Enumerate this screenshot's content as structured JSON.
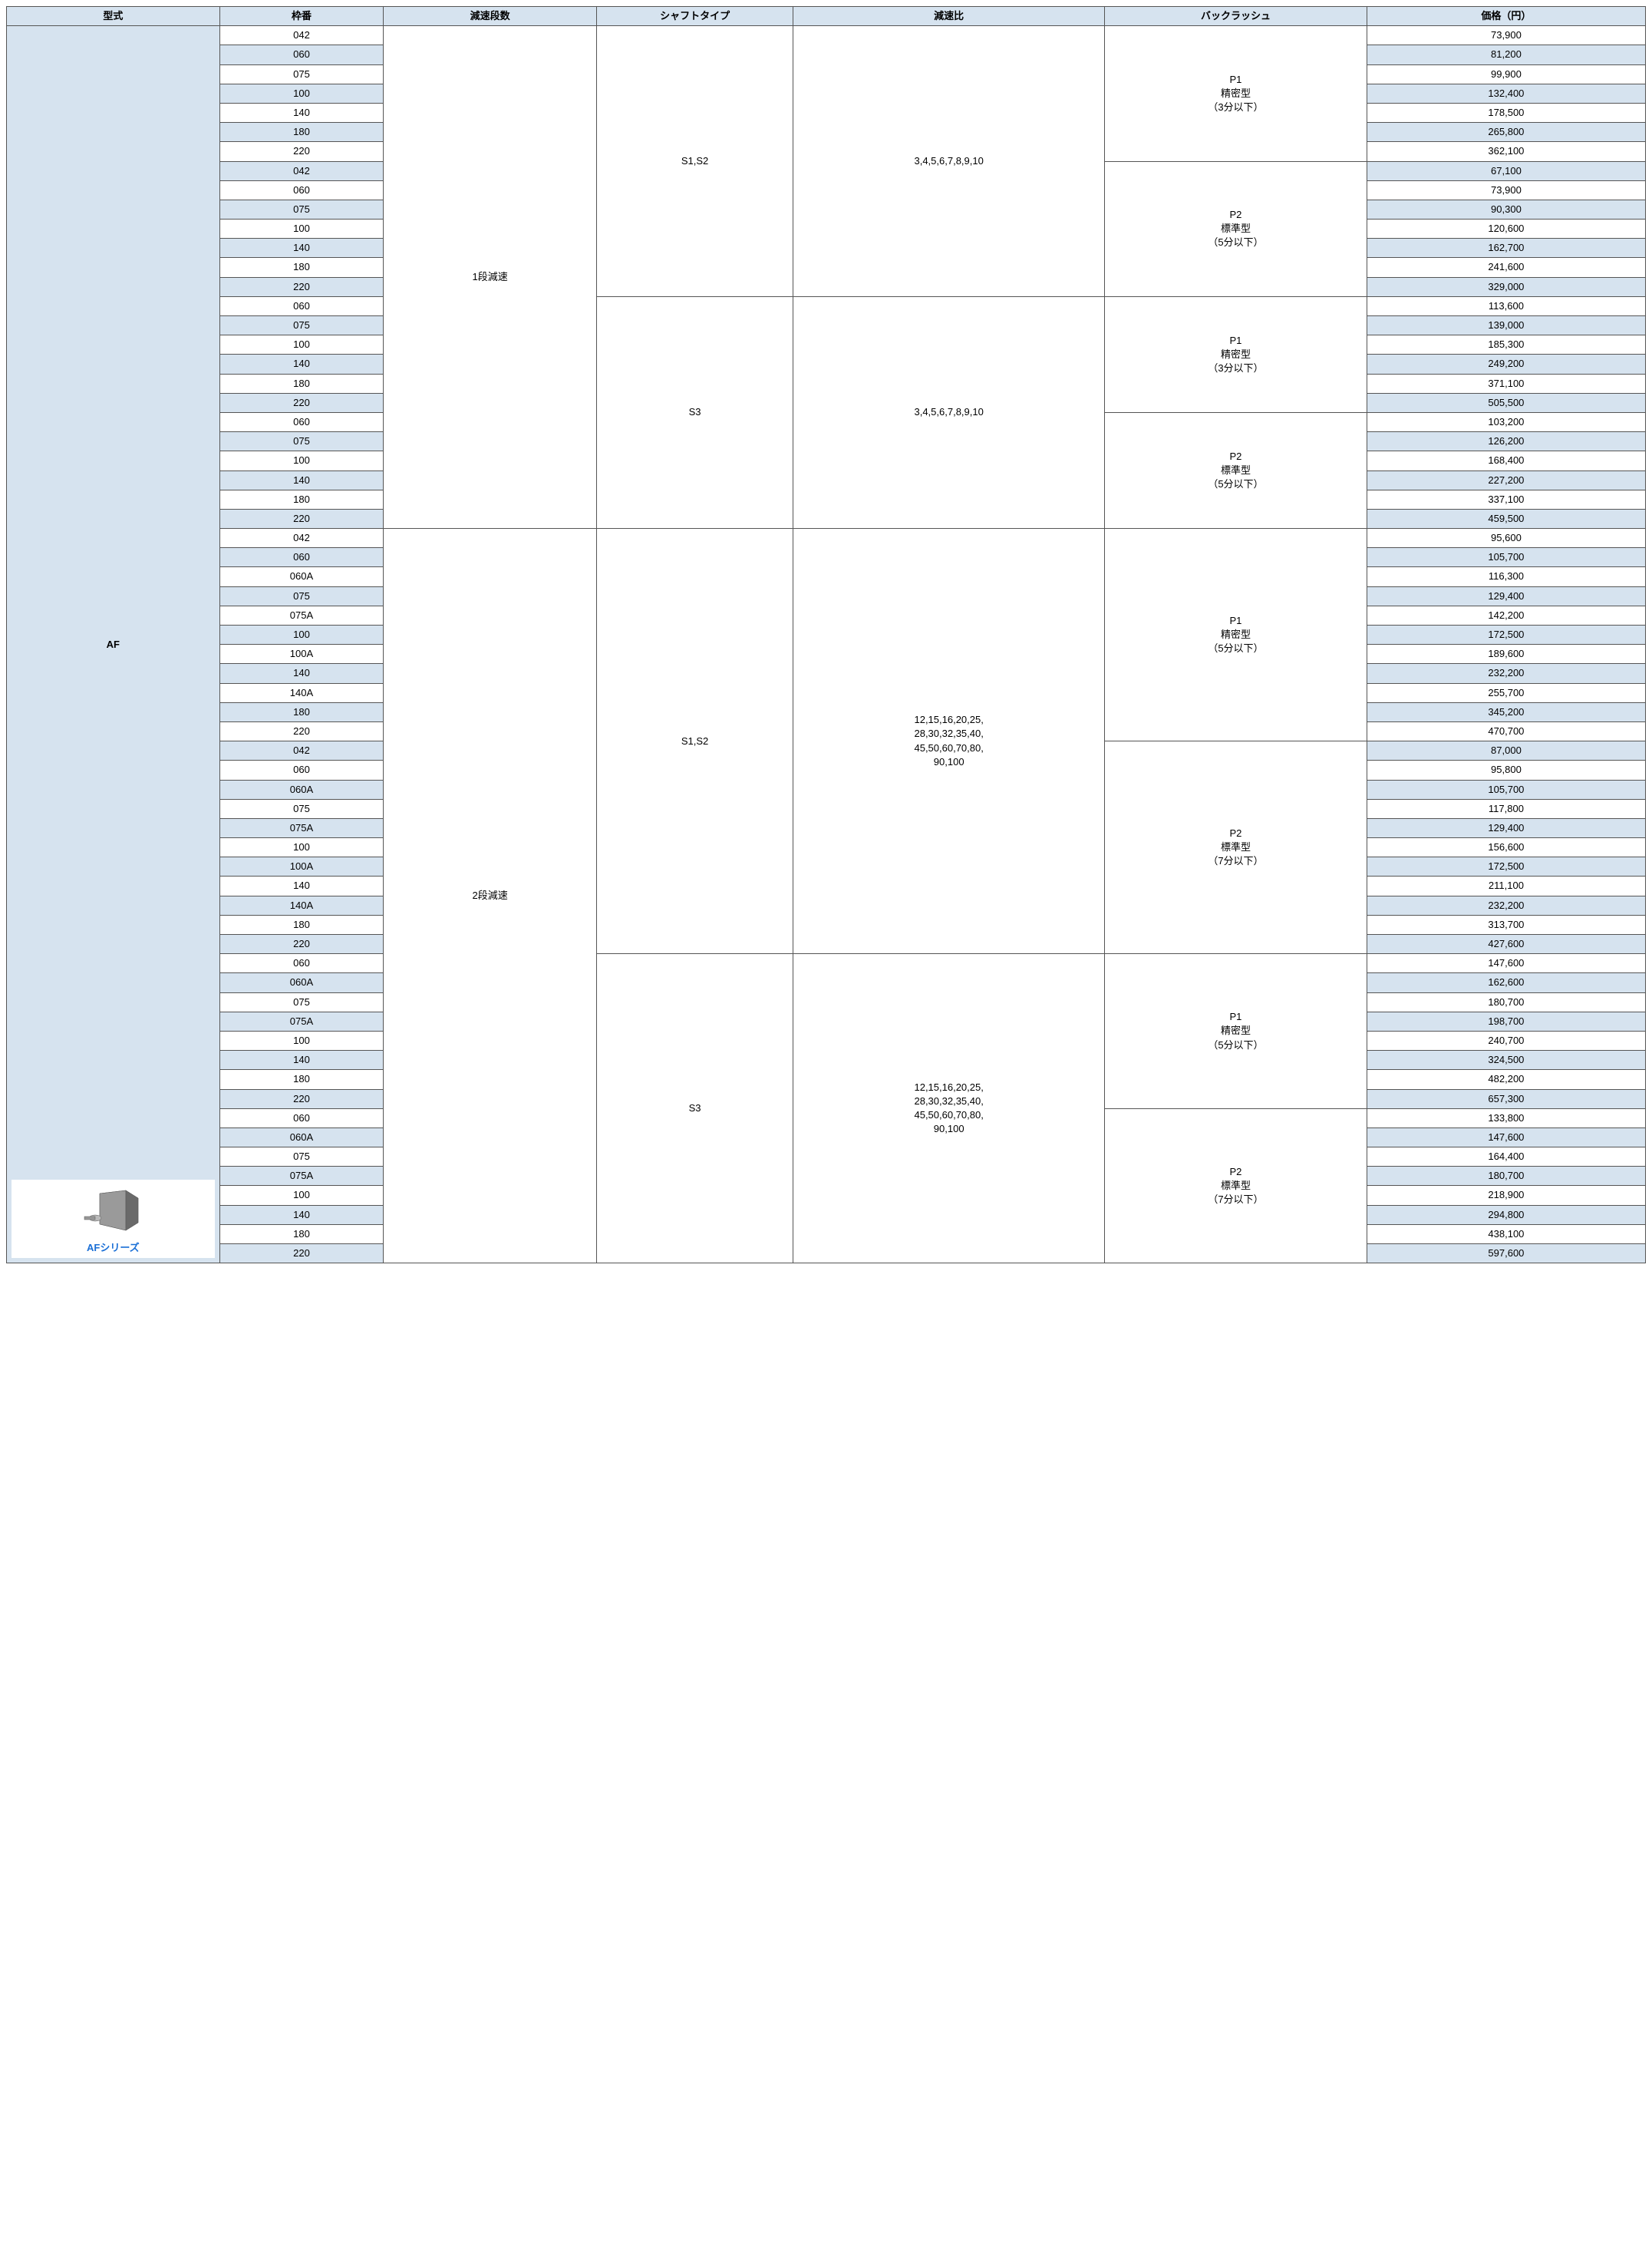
{
  "columns": [
    "型式",
    "枠番",
    "減速段数",
    "シャフトタイプ",
    "減速比",
    "バックラッシュ",
    "価格（円）"
  ],
  "model": "AF",
  "product_label": "AFシリーズ",
  "sections": [
    {
      "stage": "1段減速",
      "shafts": [
        {
          "shaft": "S1,S2",
          "ratio": "3,4,5,6,7,8,9,10",
          "backlashes": [
            {
              "label": "P1\n精密型\n（3分以下）",
              "rows": [
                {
                  "frame": "042",
                  "price": "73,900"
                },
                {
                  "frame": "060",
                  "price": "81,200"
                },
                {
                  "frame": "075",
                  "price": "99,900"
                },
                {
                  "frame": "100",
                  "price": "132,400"
                },
                {
                  "frame": "140",
                  "price": "178,500"
                },
                {
                  "frame": "180",
                  "price": "265,800"
                },
                {
                  "frame": "220",
                  "price": "362,100"
                }
              ]
            },
            {
              "label": "P2\n標準型\n（5分以下）",
              "rows": [
                {
                  "frame": "042",
                  "price": "67,100"
                },
                {
                  "frame": "060",
                  "price": "73,900"
                },
                {
                  "frame": "075",
                  "price": "90,300"
                },
                {
                  "frame": "100",
                  "price": "120,600"
                },
                {
                  "frame": "140",
                  "price": "162,700"
                },
                {
                  "frame": "180",
                  "price": "241,600"
                },
                {
                  "frame": "220",
                  "price": "329,000"
                }
              ]
            }
          ]
        },
        {
          "shaft": "S3",
          "ratio": "3,4,5,6,7,8,9,10",
          "backlashes": [
            {
              "label": "P1\n精密型\n（3分以下）",
              "rows": [
                {
                  "frame": "060",
                  "price": "113,600"
                },
                {
                  "frame": "075",
                  "price": "139,000"
                },
                {
                  "frame": "100",
                  "price": "185,300"
                },
                {
                  "frame": "140",
                  "price": "249,200"
                },
                {
                  "frame": "180",
                  "price": "371,100"
                },
                {
                  "frame": "220",
                  "price": "505,500"
                }
              ]
            },
            {
              "label": "P2\n標準型\n（5分以下）",
              "rows": [
                {
                  "frame": "060",
                  "price": "103,200"
                },
                {
                  "frame": "075",
                  "price": "126,200"
                },
                {
                  "frame": "100",
                  "price": "168,400"
                },
                {
                  "frame": "140",
                  "price": "227,200"
                },
                {
                  "frame": "180",
                  "price": "337,100"
                },
                {
                  "frame": "220",
                  "price": "459,500"
                }
              ]
            }
          ]
        }
      ]
    },
    {
      "stage": "2段減速",
      "shafts": [
        {
          "shaft": "S1,S2",
          "ratio": "12,15,16,20,25,\n28,30,32,35,40,\n45,50,60,70,80,\n90,100",
          "backlashes": [
            {
              "label": "P1\n精密型\n（5分以下）",
              "rows": [
                {
                  "frame": "042",
                  "price": "95,600"
                },
                {
                  "frame": "060",
                  "price": "105,700"
                },
                {
                  "frame": "060A",
                  "price": "116,300"
                },
                {
                  "frame": "075",
                  "price": "129,400"
                },
                {
                  "frame": "075A",
                  "price": "142,200"
                },
                {
                  "frame": "100",
                  "price": "172,500"
                },
                {
                  "frame": "100A",
                  "price": "189,600"
                },
                {
                  "frame": "140",
                  "price": "232,200"
                },
                {
                  "frame": "140A",
                  "price": "255,700"
                },
                {
                  "frame": "180",
                  "price": "345,200"
                },
                {
                  "frame": "220",
                  "price": "470,700"
                }
              ]
            },
            {
              "label": "P2\n標準型\n（7分以下）",
              "rows": [
                {
                  "frame": "042",
                  "price": "87,000"
                },
                {
                  "frame": "060",
                  "price": "95,800"
                },
                {
                  "frame": "060A",
                  "price": "105,700"
                },
                {
                  "frame": "075",
                  "price": "117,800"
                },
                {
                  "frame": "075A",
                  "price": "129,400"
                },
                {
                  "frame": "100",
                  "price": "156,600"
                },
                {
                  "frame": "100A",
                  "price": "172,500"
                },
                {
                  "frame": "140",
                  "price": "211,100"
                },
                {
                  "frame": "140A",
                  "price": "232,200"
                },
                {
                  "frame": "180",
                  "price": "313,700"
                },
                {
                  "frame": "220",
                  "price": "427,600"
                }
              ]
            }
          ]
        },
        {
          "shaft": "S3",
          "ratio": "12,15,16,20,25,\n28,30,32,35,40,\n45,50,60,70,80,\n90,100",
          "backlashes": [
            {
              "label": "P1\n精密型\n（5分以下）",
              "rows": [
                {
                  "frame": "060",
                  "price": "147,600"
                },
                {
                  "frame": "060A",
                  "price": "162,600"
                },
                {
                  "frame": "075",
                  "price": "180,700"
                },
                {
                  "frame": "075A",
                  "price": "198,700"
                },
                {
                  "frame": "100",
                  "price": "240,700"
                },
                {
                  "frame": "140",
                  "price": "324,500"
                },
                {
                  "frame": "180",
                  "price": "482,200"
                },
                {
                  "frame": "220",
                  "price": "657,300"
                }
              ]
            },
            {
              "label": "P2\n標準型\n（7分以下）",
              "rows": [
                {
                  "frame": "060",
                  "price": "133,800"
                },
                {
                  "frame": "060A",
                  "price": "147,600"
                },
                {
                  "frame": "075",
                  "price": "164,400"
                },
                {
                  "frame": "075A",
                  "price": "180,700"
                },
                {
                  "frame": "100",
                  "price": "218,900"
                },
                {
                  "frame": "140",
                  "price": "294,800"
                },
                {
                  "frame": "180",
                  "price": "438,100"
                },
                {
                  "frame": "220",
                  "price": "597,600"
                }
              ]
            }
          ]
        }
      ]
    }
  ]
}
